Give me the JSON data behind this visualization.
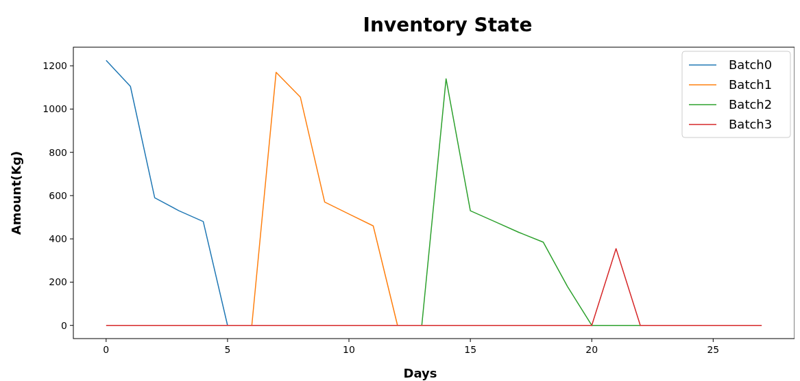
{
  "chart_data": {
    "type": "line",
    "title": "Inventory State",
    "xlabel": "Days",
    "ylabel": "Amount(Kg)",
    "x": [
      0,
      1,
      2,
      3,
      4,
      5,
      6,
      7,
      8,
      9,
      10,
      11,
      12,
      13,
      14,
      15,
      16,
      17,
      18,
      19,
      20,
      21,
      22,
      23,
      24,
      25,
      26,
      27
    ],
    "series": [
      {
        "name": "Batch0",
        "color": "#1f77b4",
        "values": [
          1225,
          1105,
          590,
          530,
          480,
          0,
          null,
          null,
          null,
          null,
          null,
          null,
          null,
          null,
          null,
          null,
          null,
          null,
          null,
          null,
          null,
          null,
          null,
          null,
          null,
          null,
          null,
          null
        ]
      },
      {
        "name": "Batch1",
        "color": "#ff7f0e",
        "values": [
          null,
          null,
          null,
          null,
          null,
          null,
          0,
          1170,
          1055,
          570,
          515,
          460,
          0,
          null,
          null,
          null,
          null,
          null,
          null,
          null,
          null,
          null,
          null,
          null,
          null,
          null,
          null,
          null
        ]
      },
      {
        "name": "Batch2",
        "color": "#2ca02c",
        "values": [
          null,
          null,
          null,
          null,
          null,
          null,
          null,
          null,
          null,
          null,
          null,
          null,
          null,
          0,
          1140,
          530,
          480,
          430,
          385,
          180,
          0,
          0,
          0,
          null,
          null,
          null,
          null,
          null
        ]
      },
      {
        "name": "Batch3",
        "color": "#d62728",
        "values": [
          0,
          0,
          0,
          0,
          0,
          0,
          0,
          0,
          0,
          0,
          0,
          0,
          0,
          0,
          0,
          0,
          0,
          0,
          0,
          0,
          0,
          355,
          0,
          0,
          0,
          0,
          0,
          0
        ]
      }
    ],
    "xlim": [
      -1.35,
      28.35
    ],
    "xticks": [
      0,
      5,
      10,
      15,
      20,
      25
    ],
    "ylim": [
      -61,
      1286
    ],
    "yticks": [
      0,
      200,
      400,
      600,
      800,
      1000,
      1200
    ],
    "legend": "top right",
    "grid": false,
    "marker": "none",
    "line_style": "solid"
  }
}
